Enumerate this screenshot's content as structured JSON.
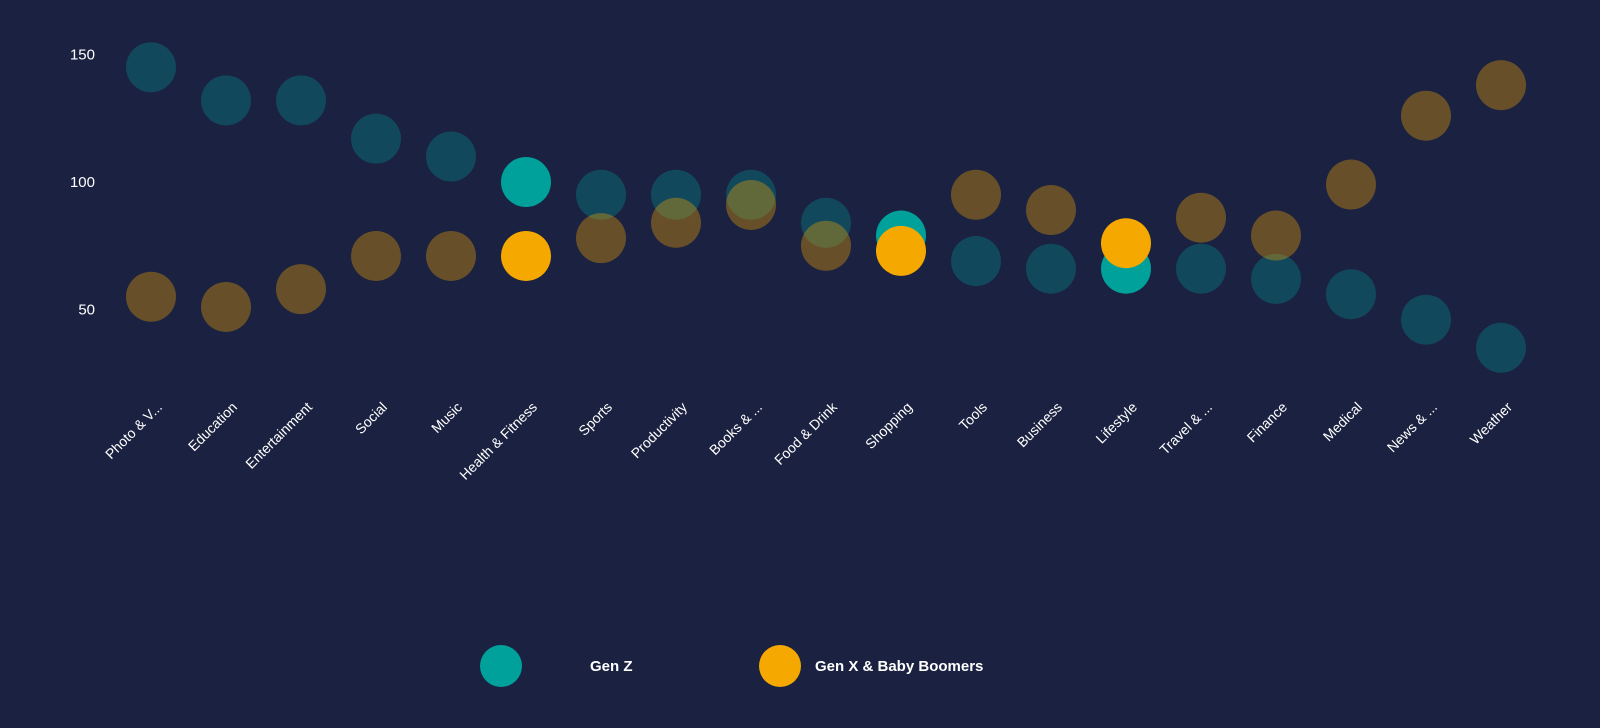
{
  "chart_data": {
    "type": "scatter",
    "categories": [
      "Photo & V...",
      "Education",
      "Entertainment",
      "Social",
      "Music",
      "Health & Fitness",
      "Sports",
      "Productivity",
      "Books & ...",
      "Food & Drink",
      "Shopping",
      "Tools",
      "Business",
      "Lifestyle",
      "Travel & ...",
      "Finance",
      "Medical",
      "News & ...",
      "Weather"
    ],
    "series": [
      {
        "name": "Gen Z",
        "color": "#00a19a",
        "values": [
          145,
          132,
          132,
          117,
          110,
          100,
          95,
          95,
          95,
          84,
          79,
          69,
          66,
          66,
          66,
          62,
          56,
          46,
          35
        ]
      },
      {
        "name": "Gen X & Baby Boomers",
        "color": "#f5a800",
        "values": [
          55,
          51,
          58,
          71,
          71,
          71,
          78,
          84,
          91,
          75,
          73,
          95,
          89,
          76,
          86,
          79,
          99,
          126,
          138
        ]
      }
    ],
    "highlighted_categories": [
      "Health & Fitness",
      "Shopping",
      "Lifestyle"
    ],
    "y_ticks": [
      50,
      100,
      150
    ],
    "ylim": [
      25,
      160
    ],
    "grid": false,
    "legend_position": "bottom",
    "background": "#1b2140"
  }
}
